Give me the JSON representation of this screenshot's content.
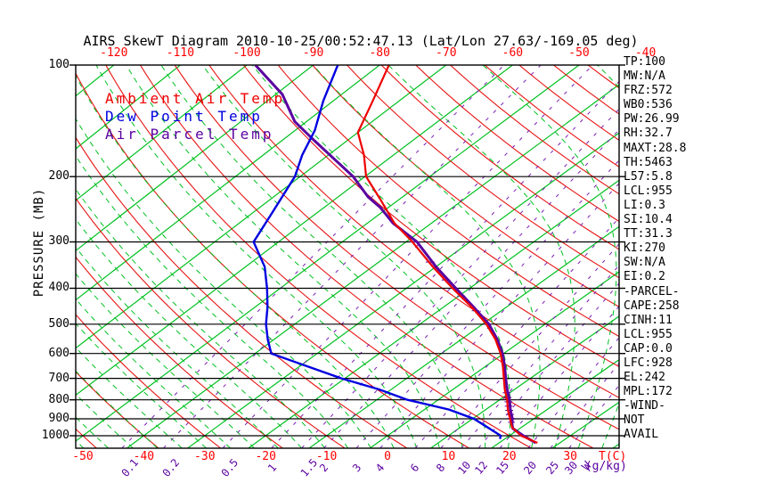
{
  "title": "AIRS SkewT Diagram 2010-10-25/00:52:47.13 (Lat/Lon 27.63/-169.05 deg)",
  "colors": {
    "isotherm_green": "#00c020",
    "dry_adiabat_red": "#e81414",
    "moist_adiabat_green": "#00c020",
    "mixing_ratio_purple": "#7a1fb4",
    "ambient_red": "#ee0000",
    "dew_blue": "#0000e0",
    "parcel_purple": "#5a00a0",
    "axis_black": "#000000",
    "tick_label_red": "#ff0000"
  },
  "legend": {
    "items": [
      {
        "label": "Ambient Air Temp",
        "color": "#ee0000"
      },
      {
        "label": "Dew Point Temp",
        "color": "#0000e0"
      },
      {
        "label": "Air Parcel Temp",
        "color": "#5a00a0"
      }
    ]
  },
  "axes": {
    "pressure_label": "PRESSURE (MB)",
    "pressure_ticks": [
      100,
      200,
      300,
      400,
      500,
      600,
      700,
      800,
      900,
      1000
    ],
    "top_temp_ticks": [
      -120,
      -110,
      -100,
      -90,
      -80,
      -70,
      -60,
      -50,
      -40
    ],
    "bottom_temp_ticks": [
      -50,
      -40,
      -30,
      -20,
      -10,
      0,
      10,
      20,
      30
    ],
    "temp_unit": "T(C)",
    "mixing_unit_symbol": "W",
    "mixing_unit": "(g/kg)",
    "mixing_ratio_labels": [
      "0.1",
      "0.2",
      "0.5",
      "1",
      "1.5",
      "2",
      "3",
      "4",
      "6",
      "8",
      "10",
      "12",
      "15",
      "20",
      "25",
      "30"
    ]
  },
  "indices_panel": {
    "lines": [
      "TP:100",
      "MW:N/A",
      "FRZ:572",
      "WB0:536",
      "PW:26.99",
      "RH:32.7",
      "MAXT:28.8",
      "TH:5463",
      "L57:5.8",
      "LCL:955",
      "LI:0.3",
      "SI:10.4",
      "TT:31.3",
      "KI:270",
      "SW:N/A",
      "EI:0.2",
      "-PARCEL-",
      "CAPE:258",
      "CINH:11",
      "LCL:955",
      "CAP:0.0",
      "LFC:928",
      "EL:242",
      "MPL:172",
      "-WIND-",
      "NOT",
      "AVAIL"
    ]
  },
  "chart_data": {
    "type": "line",
    "title": "AIRS SkewT Diagram 2010-10-25/00:52:47.13 (Lat/Lon 27.63/-169.05 deg)",
    "xlabel": "T(C)",
    "ylabel": "PRESSURE (MB)",
    "x_range_at_1000mb_c": [
      -50,
      30
    ],
    "pressure_range_mb": [
      100,
      1050
    ],
    "grid": {
      "isotherms_c": {
        "min": -160,
        "max": 40,
        "step": 10
      },
      "dry_adiabats_theta_c_at_1000mb": {
        "min": -50,
        "max": 190,
        "step": 10
      },
      "moist_adiabats_start_c_at_1000mb": {
        "min": -60,
        "max": 36,
        "step": 4
      },
      "mixing_ratio_lines_gkg": [
        0.1,
        0.2,
        0.5,
        1,
        1.5,
        2,
        3,
        4,
        6,
        8,
        10,
        12,
        15,
        20,
        25,
        30
      ]
    },
    "series": [
      {
        "name": "Ambient Air Temp",
        "color": "#ee0000",
        "points_p_t": [
          [
            100,
            -78.6
          ],
          [
            125,
            -74
          ],
          [
            152,
            -70
          ],
          [
            175,
            -64.5
          ],
          [
            200,
            -59.8
          ],
          [
            230,
            -53
          ],
          [
            267,
            -45.8
          ],
          [
            300,
            -39
          ],
          [
            350,
            -30.5
          ],
          [
            400,
            -22.7
          ],
          [
            450,
            -15.5
          ],
          [
            500,
            -9.4
          ],
          [
            550,
            -4.5
          ],
          [
            600,
            -0.5
          ],
          [
            650,
            2.8
          ],
          [
            700,
            5.7
          ],
          [
            750,
            8.4
          ],
          [
            800,
            11.2
          ],
          [
            850,
            13.6
          ],
          [
            900,
            16.1
          ],
          [
            950,
            18.5
          ],
          [
            1000,
            21.9
          ],
          [
            1045,
            26.3
          ]
        ]
      },
      {
        "name": "Dew Point Temp",
        "color": "#0000e0",
        "points_p_t": [
          [
            100,
            -86.3
          ],
          [
            125,
            -81.5
          ],
          [
            150,
            -77
          ],
          [
            175,
            -74
          ],
          [
            200,
            -70.8
          ],
          [
            250,
            -67
          ],
          [
            300,
            -63.9
          ],
          [
            350,
            -57
          ],
          [
            400,
            -52.1
          ],
          [
            450,
            -48
          ],
          [
            500,
            -44.6
          ],
          [
            550,
            -41
          ],
          [
            600,
            -37.4
          ],
          [
            650,
            -28.7
          ],
          [
            700,
            -20.6
          ],
          [
            750,
            -12
          ],
          [
            800,
            -5
          ],
          [
            850,
            4
          ],
          [
            900,
            10.2
          ],
          [
            950,
            14.5
          ],
          [
            1000,
            18.6
          ],
          [
            1020,
            19.2
          ]
        ]
      },
      {
        "name": "Air Parcel Temp",
        "color": "#5a00a0",
        "points_p_t": [
          [
            100,
            -98.7
          ],
          [
            120,
            -89
          ],
          [
            142,
            -81.8
          ],
          [
            160,
            -75
          ],
          [
            200,
            -61.8
          ],
          [
            227,
            -55.3
          ],
          [
            242,
            -51.3
          ],
          [
            267,
            -46
          ],
          [
            300,
            -38.3
          ],
          [
            350,
            -30
          ],
          [
            400,
            -22.2
          ],
          [
            450,
            -15.2
          ],
          [
            500,
            -9
          ],
          [
            550,
            -4.2
          ],
          [
            600,
            -0.2
          ],
          [
            650,
            3.1
          ],
          [
            700,
            6
          ],
          [
            750,
            8.8
          ],
          [
            800,
            11.6
          ],
          [
            850,
            14
          ],
          [
            900,
            16.5
          ],
          [
            928,
            17.6
          ],
          [
            955,
            18.8
          ],
          [
            1000,
            22.3
          ],
          [
            1045,
            26
          ]
        ]
      }
    ],
    "annotations": {
      "cape_hatch_pressures": [
        920,
        898,
        876,
        854,
        832,
        810,
        788,
        766,
        500,
        460,
        420,
        380,
        340,
        300
      ]
    }
  }
}
